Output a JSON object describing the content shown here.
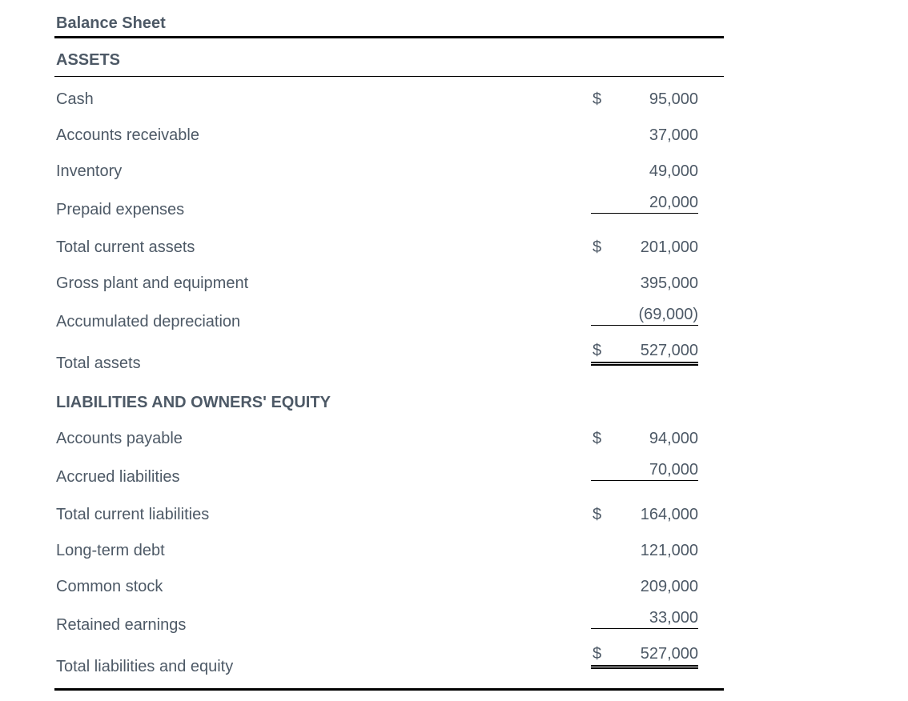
{
  "page": {
    "title": "Balance Sheet"
  },
  "colors": {
    "text": "#4d5966",
    "rule": "#000000",
    "background": "#ffffff"
  },
  "table": {
    "sections": [
      {
        "header": "ASSETS",
        "header_rule": true,
        "rows": [
          {
            "label": "Cash",
            "currency": "$",
            "amount": "95,000",
            "underline": "none"
          },
          {
            "label": "Accounts receivable",
            "currency": "",
            "amount": "37,000",
            "underline": "none"
          },
          {
            "label": "Inventory",
            "currency": "",
            "amount": "49,000",
            "underline": "none"
          },
          {
            "label": "Prepaid expenses",
            "currency": "",
            "amount": "20,000",
            "underline": "single"
          },
          {
            "label": "Total current assets",
            "currency": "$",
            "amount": "201,000",
            "underline": "none"
          },
          {
            "label": "Gross plant and equipment",
            "currency": "",
            "amount": "395,000",
            "underline": "none"
          },
          {
            "label": "Accumulated depreciation",
            "currency": "",
            "amount": "(69,000)",
            "underline": "single"
          },
          {
            "label": "Total assets",
            "currency": "$",
            "amount": "527,000",
            "underline": "double"
          }
        ]
      },
      {
        "header": "LIABILITIES AND OWNERS' EQUITY",
        "header_rule": false,
        "rows": [
          {
            "label": "Accounts payable",
            "currency": "$",
            "amount": "94,000",
            "underline": "none"
          },
          {
            "label": "Accrued liabilities",
            "currency": "",
            "amount": "70,000",
            "underline": "single"
          },
          {
            "label": "Total current liabilities",
            "currency": "$",
            "amount": "164,000",
            "underline": "none"
          },
          {
            "label": "Long-term debt",
            "currency": "",
            "amount": "121,000",
            "underline": "none"
          },
          {
            "label": "Common stock",
            "currency": "",
            "amount": "209,000",
            "underline": "none"
          },
          {
            "label": "Retained earnings",
            "currency": "",
            "amount": "33,000",
            "underline": "single"
          },
          {
            "label": "Total liabilities and equity",
            "currency": "$",
            "amount": "527,000",
            "underline": "double"
          }
        ]
      }
    ]
  }
}
